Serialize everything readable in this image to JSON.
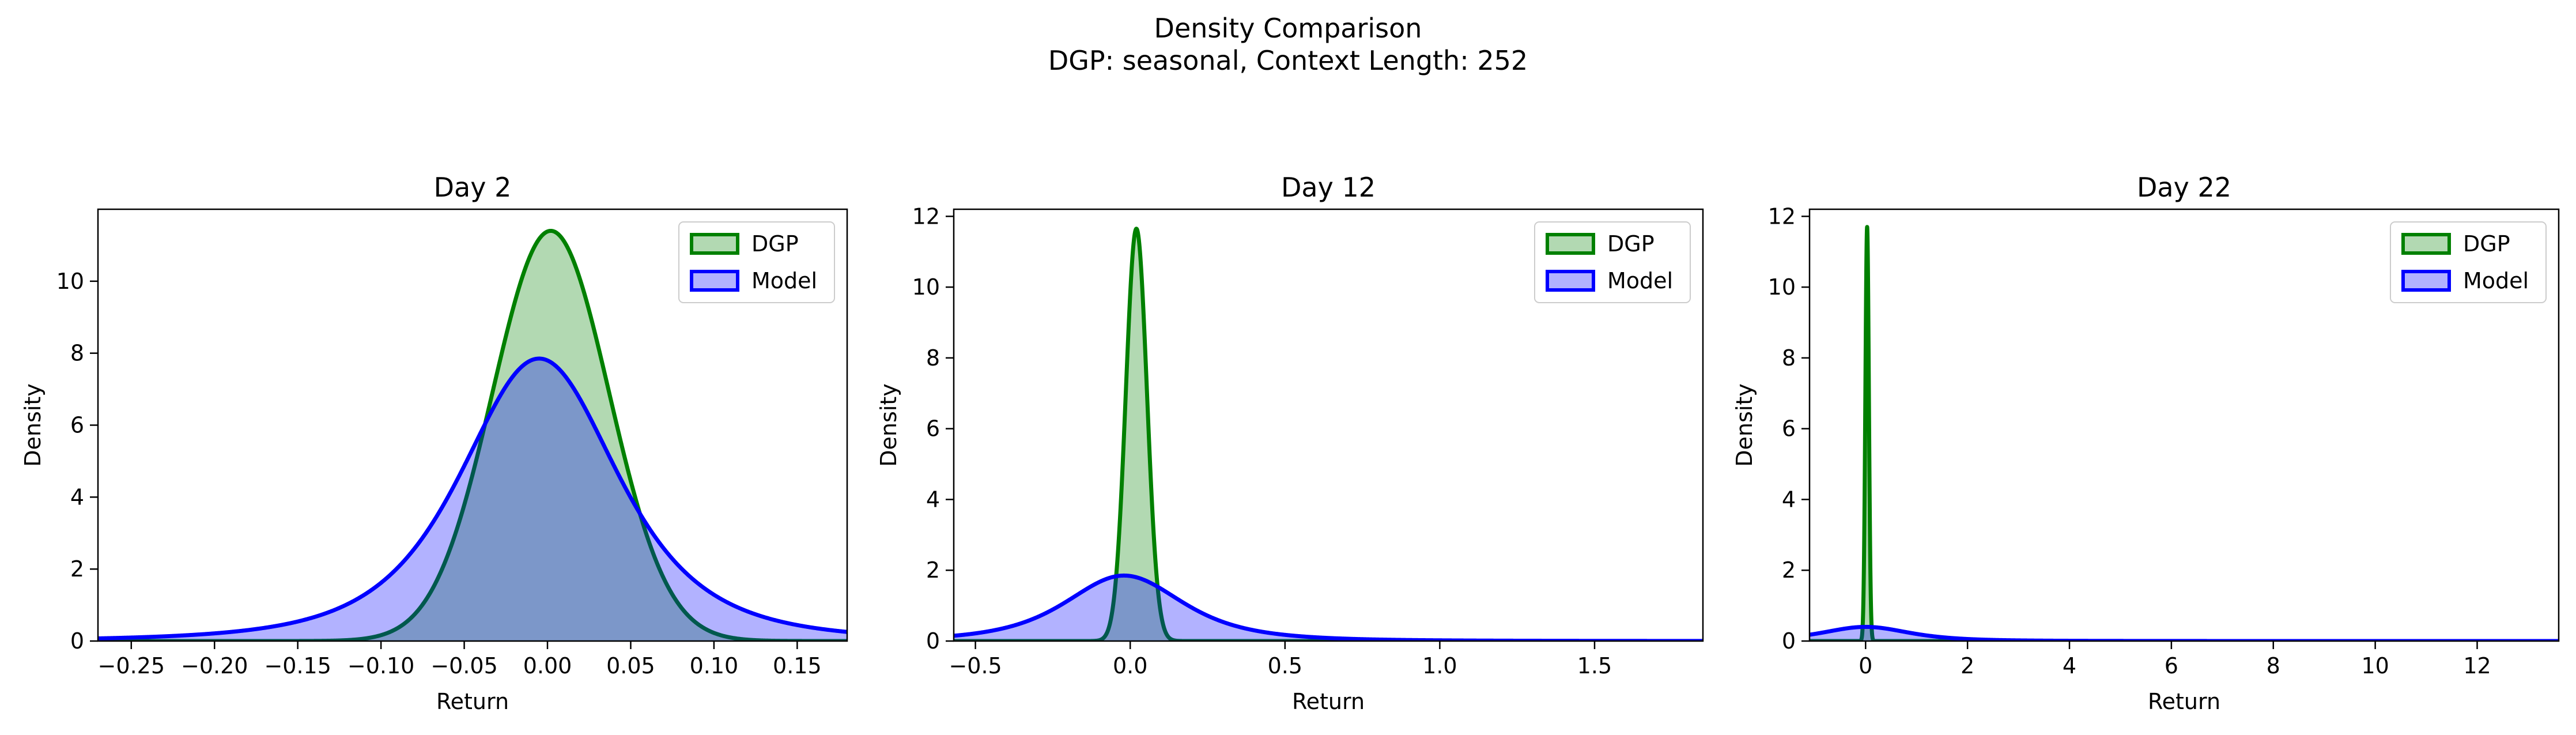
{
  "figure": {
    "title": "Density Comparison",
    "subtitle": "DGP: seasonal, Context Length: 252"
  },
  "chart_data": [
    {
      "type": "area",
      "title": "Day 2",
      "xlabel": "Return",
      "ylabel": "Density",
      "xlim": [
        -0.27,
        0.18
      ],
      "ylim": [
        0,
        12
      ],
      "xticks": [
        "-0.25",
        "-0.20",
        "-0.15",
        "-0.10",
        "-0.05",
        "0.00",
        "0.05",
        "0.10",
        "0.15"
      ],
      "xtick_values": [
        -0.25,
        -0.2,
        -0.15,
        -0.1,
        -0.05,
        0.0,
        0.05,
        0.1,
        0.15
      ],
      "yticks": [
        "0",
        "2",
        "4",
        "6",
        "8",
        "10"
      ],
      "ytick_values": [
        0,
        2,
        4,
        6,
        8,
        10
      ],
      "legend": "top-right",
      "grid": false,
      "series": [
        {
          "name": "DGP",
          "color": "#008000",
          "peak_x": 0.002,
          "peak_y": 11.4,
          "sigma": 0.035,
          "shape": "gaussian"
        },
        {
          "name": "Model",
          "color": "#0000ff",
          "peak_x": -0.005,
          "peak_y": 7.85,
          "sigma": 0.05,
          "shape": "heavy-tailed"
        }
      ]
    },
    {
      "type": "area",
      "title": "Day 12",
      "xlabel": "Return",
      "ylabel": "Density",
      "xlim": [
        -0.57,
        1.85
      ],
      "ylim": [
        0,
        12.2
      ],
      "xticks": [
        "-0.5",
        "0.0",
        "0.5",
        "1.0",
        "1.5"
      ],
      "xtick_values": [
        -0.5,
        0.0,
        0.5,
        1.0,
        1.5
      ],
      "yticks": [
        "0",
        "2",
        "4",
        "6",
        "8",
        "10",
        "12"
      ],
      "ytick_values": [
        0,
        2,
        4,
        6,
        8,
        10,
        12
      ],
      "legend": "top-right",
      "grid": false,
      "series": [
        {
          "name": "DGP",
          "color": "#008000",
          "peak_x": 0.02,
          "peak_y": 11.65,
          "sigma": 0.034,
          "shape": "gaussian"
        },
        {
          "name": "Model",
          "color": "#0000ff",
          "peak_x": -0.02,
          "peak_y": 1.85,
          "sigma": 0.2,
          "shape": "heavy-tailed"
        }
      ]
    },
    {
      "type": "area",
      "title": "Day 22",
      "xlabel": "Return",
      "ylabel": "Density",
      "xlim": [
        -1.1,
        13.6
      ],
      "ylim": [
        0,
        12.2
      ],
      "xticks": [
        "0",
        "2",
        "4",
        "6",
        "8",
        "10",
        "12"
      ],
      "xtick_values": [
        0,
        2,
        4,
        6,
        8,
        10,
        12
      ],
      "yticks": [
        "0",
        "2",
        "4",
        "6",
        "8",
        "10",
        "12"
      ],
      "ytick_values": [
        0,
        2,
        4,
        6,
        8,
        10,
        12
      ],
      "legend": "top-right",
      "grid": false,
      "series": [
        {
          "name": "DGP",
          "color": "#008000",
          "peak_x": 0.03,
          "peak_y": 11.7,
          "sigma": 0.034,
          "shape": "gaussian"
        },
        {
          "name": "Model",
          "color": "#0000ff",
          "peak_x": 0.0,
          "peak_y": 0.4,
          "sigma": 0.9,
          "shape": "heavy-tailed"
        }
      ]
    }
  ]
}
